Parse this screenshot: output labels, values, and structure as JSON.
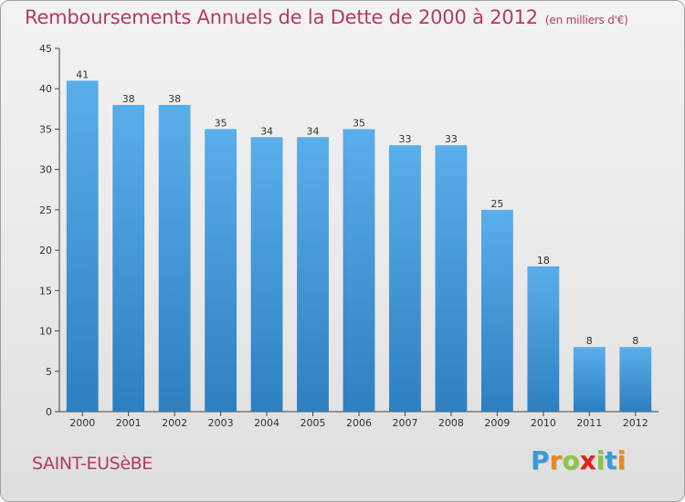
{
  "title": "Remboursements Annuels de la Dette de 2000 à 2012",
  "unit_note": "(en milliers d'€)",
  "commune": "SAINT-EUSèBE",
  "logo": {
    "letters": [
      "P",
      "r",
      "o",
      "x",
      "i",
      "t",
      "i"
    ],
    "colors": [
      "#3a9ad9",
      "#e88a1e",
      "#8cc63f",
      "#e2231a",
      "#8cc63f",
      "#3a9ad9",
      "#e88a1e"
    ]
  },
  "colors": {
    "bar_top": "#5aaeea",
    "bar_bottom": "#2e7fc0",
    "axis": "#444444",
    "title": "#b23a6b"
  },
  "chart_data": {
    "type": "bar",
    "title": "Remboursements Annuels de la Dette de 2000 à 2012",
    "subtitle": "(en milliers d'€)",
    "categories": [
      "2000",
      "2001",
      "2002",
      "2003",
      "2004",
      "2005",
      "2006",
      "2007",
      "2008",
      "2009",
      "2010",
      "2011",
      "2012"
    ],
    "values": [
      41,
      38,
      38,
      35,
      34,
      34,
      35,
      33,
      33,
      25,
      18,
      8,
      8
    ],
    "ylim": [
      0,
      45
    ],
    "yticks": [
      0,
      5,
      10,
      15,
      20,
      25,
      30,
      35,
      40,
      45
    ],
    "grid": false,
    "data_labels": true
  }
}
